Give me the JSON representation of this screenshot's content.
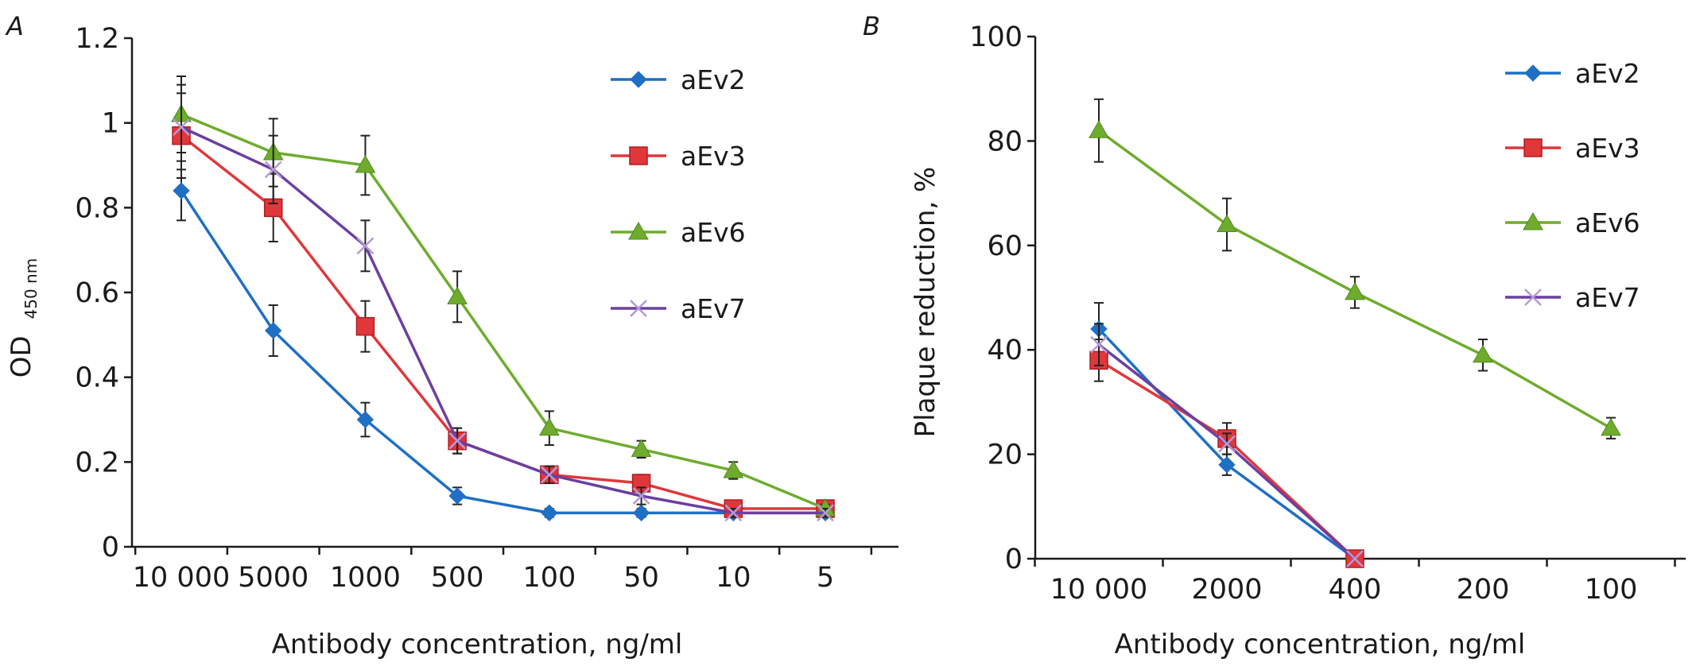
{
  "chart_data": [
    {
      "type": "line",
      "panel_label": "A",
      "xlabel": "Antibody concentration, ng/ml",
      "ylabel_main": "OD",
      "ylabel_sub": "450 nm",
      "categories": [
        "10 000",
        "5000",
        "1000",
        "500",
        "100",
        "50",
        "10",
        "5"
      ],
      "ylim": [
        0,
        1.2
      ],
      "yticks": [
        0,
        0.2,
        0.4,
        0.6,
        0.8,
        1,
        1.2
      ],
      "ytick_labels": [
        "0",
        "0.2",
        "0.4",
        "0.6",
        "0.8",
        "1",
        "1.2"
      ],
      "legend_position": "top-right",
      "grid": false,
      "series": [
        {
          "name": "aEv2",
          "color": "#1f6fc5",
          "marker": "diamond",
          "values": [
            0.84,
            0.51,
            0.3,
            0.12,
            0.08,
            0.08,
            0.08,
            0.08
          ],
          "errors": [
            0.07,
            0.06,
            0.04,
            0.02,
            0.01,
            0.01,
            0.01,
            0.01
          ]
        },
        {
          "name": "aEv3",
          "color": "#e0373b",
          "marker": "square",
          "values": [
            0.97,
            0.8,
            0.52,
            0.25,
            0.17,
            0.15,
            0.09,
            0.09
          ],
          "errors": [
            0.1,
            0.08,
            0.06,
            0.03,
            0.02,
            0.02,
            0.01,
            0.01
          ]
        },
        {
          "name": "aEv6",
          "color": "#6fac2e",
          "marker": "triangle",
          "values": [
            1.02,
            0.93,
            0.9,
            0.59,
            0.28,
            0.23,
            0.18,
            0.09
          ],
          "errors": [
            0.09,
            0.08,
            0.07,
            0.06,
            0.04,
            0.02,
            0.02,
            0.01
          ]
        },
        {
          "name": "aEv7",
          "color": "#6b3fa0",
          "marker": "x",
          "values": [
            0.99,
            0.89,
            0.71,
            0.25,
            0.17,
            0.12,
            0.08,
            0.08
          ],
          "errors": [
            0.1,
            0.08,
            0.06,
            0.03,
            0.02,
            0.02,
            0.01,
            0.01
          ]
        }
      ]
    },
    {
      "type": "line",
      "panel_label": "B",
      "xlabel": "Antibody concentration, ng/ml",
      "ylabel": "Plaque reduction, %",
      "categories": [
        "10 000",
        "2000",
        "400",
        "200",
        "100"
      ],
      "ylim": [
        0,
        100
      ],
      "yticks": [
        0,
        20,
        40,
        60,
        80,
        100
      ],
      "ytick_labels": [
        "0",
        "20",
        "40",
        "60",
        "80",
        "100"
      ],
      "legend_position": "top-right",
      "grid": false,
      "series": [
        {
          "name": "aEv2",
          "color": "#1f6fc5",
          "marker": "diamond",
          "values": [
            44,
            18,
            0,
            null,
            null
          ],
          "errors": [
            5,
            2,
            0,
            null,
            null
          ]
        },
        {
          "name": "aEv3",
          "color": "#e0373b",
          "marker": "square",
          "values": [
            38,
            23,
            0,
            null,
            null
          ],
          "errors": [
            4,
            3,
            0,
            null,
            null
          ]
        },
        {
          "name": "aEv6",
          "color": "#6fac2e",
          "marker": "triangle",
          "values": [
            82,
            64,
            51,
            39,
            25
          ],
          "errors": [
            6,
            5,
            3,
            3,
            2
          ]
        },
        {
          "name": "aEv7",
          "color": "#6b3fa0",
          "marker": "x",
          "values": [
            41,
            22,
            0,
            null,
            null
          ],
          "errors": [
            4,
            2,
            0,
            null,
            null
          ]
        }
      ]
    }
  ]
}
